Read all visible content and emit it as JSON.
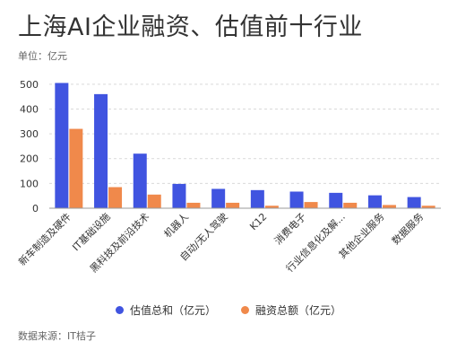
{
  "title": "上海AI企业融资、估值前十行业",
  "unit_label": "单位：亿元",
  "source_label": "数据来源：IT桔子",
  "colors": {
    "valuation": "#4054E0",
    "financing": "#F0894B",
    "grid": "#d9d9d9"
  },
  "chart_data": {
    "type": "bar",
    "categories": [
      "新车制造及硬件",
      "IT基础设施",
      "黑科技及前沿技术",
      "机器人",
      "自动/无人驾驶",
      "K12",
      "消费电子",
      "行业信息化及解...",
      "其他企业服务",
      "数据服务"
    ],
    "series": [
      {
        "name": "估值总和（亿元）",
        "values": [
          505,
          460,
          220,
          98,
          78,
          73,
          67,
          62,
          52,
          45
        ]
      },
      {
        "name": "融资总额（亿元）",
        "values": [
          320,
          85,
          55,
          22,
          22,
          10,
          25,
          22,
          13,
          10
        ]
      }
    ],
    "y_ticks": [
      0,
      100,
      200,
      300,
      400,
      500
    ],
    "ylim": [
      0,
      550
    ],
    "legend_position": "bottom",
    "grid": true
  }
}
